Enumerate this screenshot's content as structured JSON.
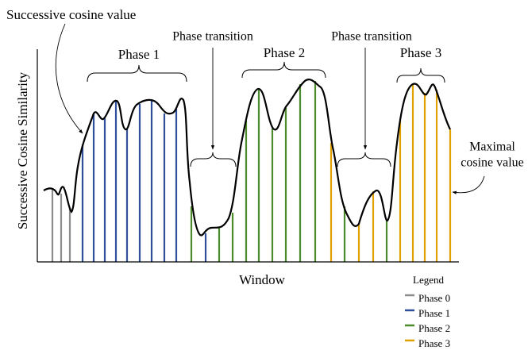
{
  "annotations": {
    "successive": "Successive cosine value",
    "transition_1": "Phase transition",
    "transition_2": "Phase transition",
    "maximal_1": "Maximal",
    "maximal_2": "cosine value"
  },
  "axes": {
    "y_label": "Successive Cosine Similarity",
    "x_label": "Window"
  },
  "phases": [
    {
      "name": "Phase 0",
      "color": "#8c8c8c"
    },
    {
      "name": "Phase 1",
      "color": "#2f4f9b"
    },
    {
      "name": "Phase 2",
      "color": "#4b8b2b"
    },
    {
      "name": "Phase 3",
      "color": "#e0a100"
    }
  ],
  "legend": {
    "title": "Legend"
  }
}
